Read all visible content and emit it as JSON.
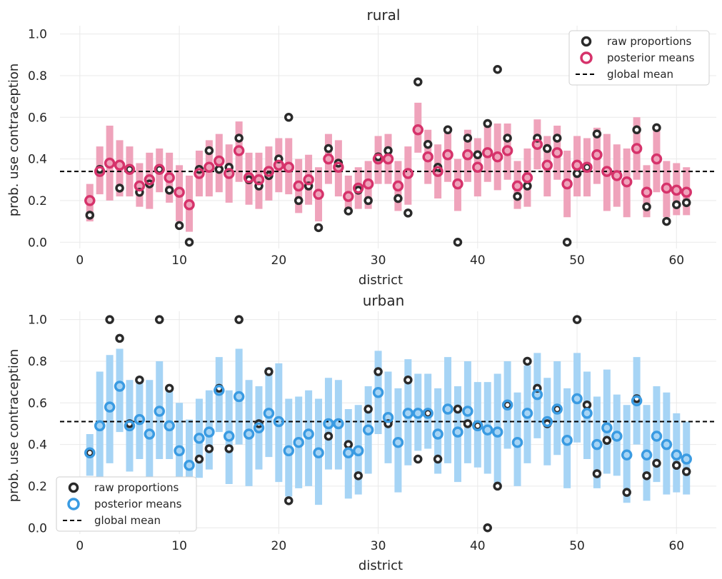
{
  "figure": {
    "colors": {
      "rural_pred": "#d6336b",
      "rural_interval": "#efa3bb",
      "urban_pred": "#3a9be2",
      "urban_interval": "#a6d4f5",
      "raw": "#2a2a2a",
      "grid": "#e9e9e9"
    }
  },
  "chart_data": [
    {
      "type": "scatter",
      "title": "rural",
      "xlabel": "district",
      "ylabel": "prob. use contraception",
      "xlim": [
        -2,
        64
      ],
      "ylim": [
        -0.03,
        1.04
      ],
      "xticks": [
        0,
        10,
        20,
        30,
        40,
        50,
        60
      ],
      "yticks": [
        0.0,
        0.2,
        0.4,
        0.6,
        0.8,
        1.0
      ],
      "grid": true,
      "legend_position": "top-right",
      "legend": [
        "raw proportions",
        "posterior means",
        "global mean"
      ],
      "global_mean": 0.34,
      "districts": [
        1,
        2,
        3,
        4,
        5,
        6,
        7,
        8,
        9,
        10,
        11,
        12,
        13,
        14,
        15,
        16,
        17,
        18,
        19,
        20,
        21,
        22,
        23,
        24,
        25,
        26,
        27,
        28,
        29,
        30,
        31,
        32,
        33,
        34,
        35,
        36,
        37,
        38,
        39,
        40,
        41,
        42,
        43,
        44,
        45,
        46,
        47,
        48,
        49,
        50,
        51,
        52,
        53,
        54,
        55,
        56,
        57,
        58,
        59,
        60,
        61
      ],
      "raw_proportions": [
        0.13,
        0.35,
        null,
        0.26,
        0.35,
        0.24,
        0.28,
        0.35,
        0.25,
        0.08,
        0.0,
        0.35,
        0.44,
        0.35,
        0.36,
        0.5,
        0.3,
        0.27,
        0.32,
        0.4,
        0.6,
        0.2,
        0.27,
        0.07,
        0.45,
        0.38,
        0.15,
        0.25,
        0.2,
        0.41,
        0.44,
        0.21,
        0.14,
        0.77,
        0.47,
        0.36,
        0.54,
        0.0,
        0.5,
        0.42,
        0.57,
        0.83,
        0.5,
        0.22,
        0.27,
        0.5,
        0.45,
        0.5,
        0.0,
        0.33,
        0.36,
        0.52,
        null,
        null,
        null,
        0.54,
        0.17,
        0.55,
        0.1,
        0.18,
        0.19
      ],
      "posterior_means": [
        0.2,
        0.34,
        0.38,
        0.37,
        0.35,
        0.27,
        0.3,
        0.35,
        0.31,
        0.24,
        0.18,
        0.33,
        0.36,
        0.39,
        0.33,
        0.44,
        0.31,
        0.3,
        0.34,
        0.37,
        0.36,
        0.27,
        0.3,
        0.23,
        0.4,
        0.36,
        0.22,
        0.26,
        0.28,
        0.4,
        0.4,
        0.27,
        0.33,
        0.54,
        0.41,
        0.34,
        0.42,
        0.28,
        0.42,
        0.36,
        0.43,
        0.41,
        0.44,
        0.27,
        0.31,
        0.47,
        0.37,
        0.43,
        0.28,
        0.37,
        0.36,
        0.42,
        0.34,
        0.32,
        0.29,
        0.45,
        0.24,
        0.4,
        0.26,
        0.25,
        0.24
      ],
      "interval_low": [
        0.1,
        0.23,
        0.2,
        0.22,
        0.22,
        0.17,
        0.16,
        0.24,
        0.19,
        0.1,
        0.05,
        0.22,
        0.22,
        0.24,
        0.19,
        0.29,
        0.18,
        0.16,
        0.2,
        0.24,
        0.23,
        0.14,
        0.18,
        0.1,
        0.28,
        0.22,
        0.14,
        0.16,
        0.16,
        0.28,
        0.28,
        0.15,
        0.18,
        0.43,
        0.28,
        0.21,
        0.29,
        0.15,
        0.29,
        0.22,
        0.29,
        0.25,
        0.3,
        0.16,
        0.17,
        0.35,
        0.22,
        0.3,
        0.12,
        0.22,
        0.22,
        0.28,
        0.15,
        0.17,
        0.12,
        0.3,
        0.12,
        0.24,
        0.12,
        0.13,
        0.13
      ],
      "interval_high": [
        0.28,
        0.46,
        0.56,
        0.49,
        0.46,
        0.38,
        0.43,
        0.45,
        0.43,
        0.37,
        0.32,
        0.44,
        0.49,
        0.52,
        0.47,
        0.58,
        0.43,
        0.43,
        0.46,
        0.5,
        0.5,
        0.4,
        0.42,
        0.36,
        0.52,
        0.49,
        0.32,
        0.36,
        0.39,
        0.51,
        0.52,
        0.39,
        0.46,
        0.67,
        0.54,
        0.47,
        0.55,
        0.4,
        0.54,
        0.5,
        0.57,
        0.57,
        0.57,
        0.39,
        0.45,
        0.59,
        0.51,
        0.56,
        0.44,
        0.51,
        0.5,
        0.55,
        0.52,
        0.47,
        0.45,
        0.6,
        0.37,
        0.55,
        0.39,
        0.38,
        0.36
      ]
    },
    {
      "type": "scatter",
      "title": "urban",
      "xlabel": "district",
      "ylabel": "prob. use contraception",
      "xlim": [
        -2,
        64
      ],
      "ylim": [
        -0.03,
        1.04
      ],
      "xticks": [
        0,
        10,
        20,
        30,
        40,
        50,
        60
      ],
      "yticks": [
        0.0,
        0.2,
        0.4,
        0.6,
        0.8,
        1.0
      ],
      "grid": true,
      "legend_position": "bottom-left",
      "legend": [
        "raw proportions",
        "posterior means",
        "global mean"
      ],
      "global_mean": 0.51,
      "districts": [
        1,
        2,
        3,
        4,
        5,
        6,
        7,
        8,
        9,
        10,
        11,
        12,
        13,
        14,
        15,
        16,
        17,
        18,
        19,
        20,
        21,
        22,
        23,
        24,
        25,
        26,
        27,
        28,
        29,
        30,
        31,
        32,
        33,
        34,
        35,
        36,
        37,
        38,
        39,
        40,
        41,
        42,
        43,
        44,
        45,
        46,
        47,
        48,
        49,
        50,
        51,
        52,
        53,
        54,
        55,
        56,
        57,
        58,
        59,
        60,
        61
      ],
      "raw_proportions": [
        0.36,
        null,
        1.0,
        0.91,
        0.5,
        0.71,
        null,
        1.0,
        0.67,
        null,
        null,
        0.33,
        0.38,
        0.67,
        0.38,
        1.0,
        null,
        0.5,
        0.75,
        null,
        0.13,
        null,
        null,
        null,
        0.44,
        null,
        0.4,
        0.25,
        0.57,
        0.75,
        0.5,
        null,
        0.71,
        0.33,
        0.55,
        0.33,
        null,
        0.57,
        0.5,
        0.49,
        0.0,
        0.2,
        0.59,
        null,
        0.8,
        0.67,
        0.5,
        0.57,
        null,
        1.0,
        0.59,
        0.26,
        0.42,
        null,
        0.17,
        0.62,
        0.25,
        0.31,
        null,
        0.3,
        0.27
      ],
      "posterior_means": [
        0.36,
        0.49,
        0.58,
        0.68,
        0.49,
        0.52,
        0.45,
        0.56,
        0.49,
        0.37,
        0.3,
        0.43,
        0.46,
        0.66,
        0.44,
        0.63,
        0.45,
        0.48,
        0.55,
        0.51,
        0.37,
        0.41,
        0.45,
        0.36,
        0.5,
        0.5,
        0.36,
        0.37,
        0.47,
        0.65,
        0.53,
        0.41,
        0.55,
        0.55,
        0.55,
        0.45,
        0.57,
        0.46,
        0.56,
        0.49,
        0.47,
        0.46,
        0.59,
        0.41,
        0.55,
        0.64,
        0.51,
        0.57,
        0.42,
        0.62,
        0.55,
        0.4,
        0.48,
        0.44,
        0.35,
        0.61,
        0.35,
        0.44,
        0.4,
        0.35,
        0.33
      ],
      "interval_low": [
        0.25,
        0.22,
        0.31,
        0.46,
        0.27,
        0.33,
        0.2,
        0.33,
        0.33,
        0.16,
        0.08,
        0.24,
        0.28,
        0.46,
        0.21,
        0.4,
        0.2,
        0.28,
        0.34,
        0.22,
        0.15,
        0.19,
        0.2,
        0.11,
        0.28,
        0.28,
        0.14,
        0.16,
        0.26,
        0.45,
        0.31,
        0.17,
        0.3,
        0.37,
        0.38,
        0.26,
        0.31,
        0.22,
        0.31,
        0.29,
        0.26,
        0.19,
        0.38,
        0.2,
        0.31,
        0.43,
        0.3,
        0.35,
        0.19,
        0.41,
        0.33,
        0.19,
        0.26,
        0.25,
        0.12,
        0.4,
        0.13,
        0.22,
        0.16,
        0.17,
        0.16
      ],
      "interval_high": [
        0.45,
        0.75,
        0.83,
        0.86,
        0.71,
        0.71,
        0.71,
        0.8,
        0.67,
        0.6,
        0.52,
        0.62,
        0.66,
        0.82,
        0.66,
        0.86,
        0.71,
        0.68,
        0.77,
        0.79,
        0.62,
        0.63,
        0.66,
        0.62,
        0.72,
        0.71,
        0.57,
        0.59,
        0.68,
        0.85,
        0.75,
        0.67,
        0.81,
        0.74,
        0.74,
        0.67,
        0.82,
        0.68,
        0.8,
        0.7,
        0.7,
        0.74,
        0.8,
        0.65,
        0.78,
        0.84,
        0.72,
        0.8,
        0.67,
        0.84,
        0.75,
        0.63,
        0.76,
        0.64,
        0.59,
        0.82,
        0.59,
        0.68,
        0.65,
        0.55,
        0.51
      ]
    }
  ]
}
